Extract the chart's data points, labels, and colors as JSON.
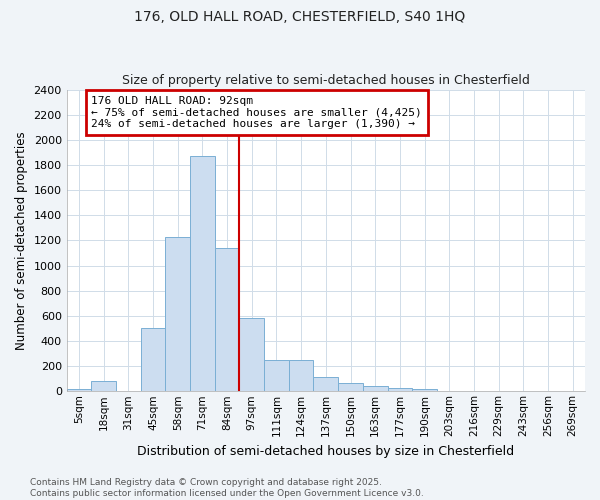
{
  "title1": "176, OLD HALL ROAD, CHESTERFIELD, S40 1HQ",
  "title2": "Size of property relative to semi-detached houses in Chesterfield",
  "xlabel": "Distribution of semi-detached houses by size in Chesterfield",
  "ylabel": "Number of semi-detached properties",
  "bar_labels": [
    "5sqm",
    "18sqm",
    "31sqm",
    "45sqm",
    "58sqm",
    "71sqm",
    "84sqm",
    "97sqm",
    "111sqm",
    "124sqm",
    "137sqm",
    "150sqm",
    "163sqm",
    "177sqm",
    "190sqm",
    "203sqm",
    "216sqm",
    "229sqm",
    "243sqm",
    "256sqm",
    "269sqm"
  ],
  "bar_values": [
    20,
    80,
    0,
    500,
    1230,
    1870,
    1140,
    580,
    245,
    245,
    110,
    65,
    40,
    25,
    20,
    0,
    0,
    0,
    0,
    0,
    0
  ],
  "bar_color": "#ccddf0",
  "bar_edge_color": "#7aafd4",
  "vline_color": "#cc0000",
  "annotation_title": "176 OLD HALL ROAD: 92sqm",
  "annotation_line1": "← 75% of semi-detached houses are smaller (4,425)",
  "annotation_line2": "24% of semi-detached houses are larger (1,390) →",
  "annotation_box_color": "#ffffff",
  "annotation_box_edge": "#cc0000",
  "ylim": [
    0,
    2400
  ],
  "yticks": [
    0,
    200,
    400,
    600,
    800,
    1000,
    1200,
    1400,
    1600,
    1800,
    2000,
    2200,
    2400
  ],
  "footer_line1": "Contains HM Land Registry data © Crown copyright and database right 2025.",
  "footer_line2": "Contains public sector information licensed under the Open Government Licence v3.0.",
  "plot_bg_color": "#ffffff",
  "fig_bg_color": "#f0f4f8",
  "grid_color": "#d0dce8",
  "title_fontsize": 10,
  "subtitle_fontsize": 9
}
